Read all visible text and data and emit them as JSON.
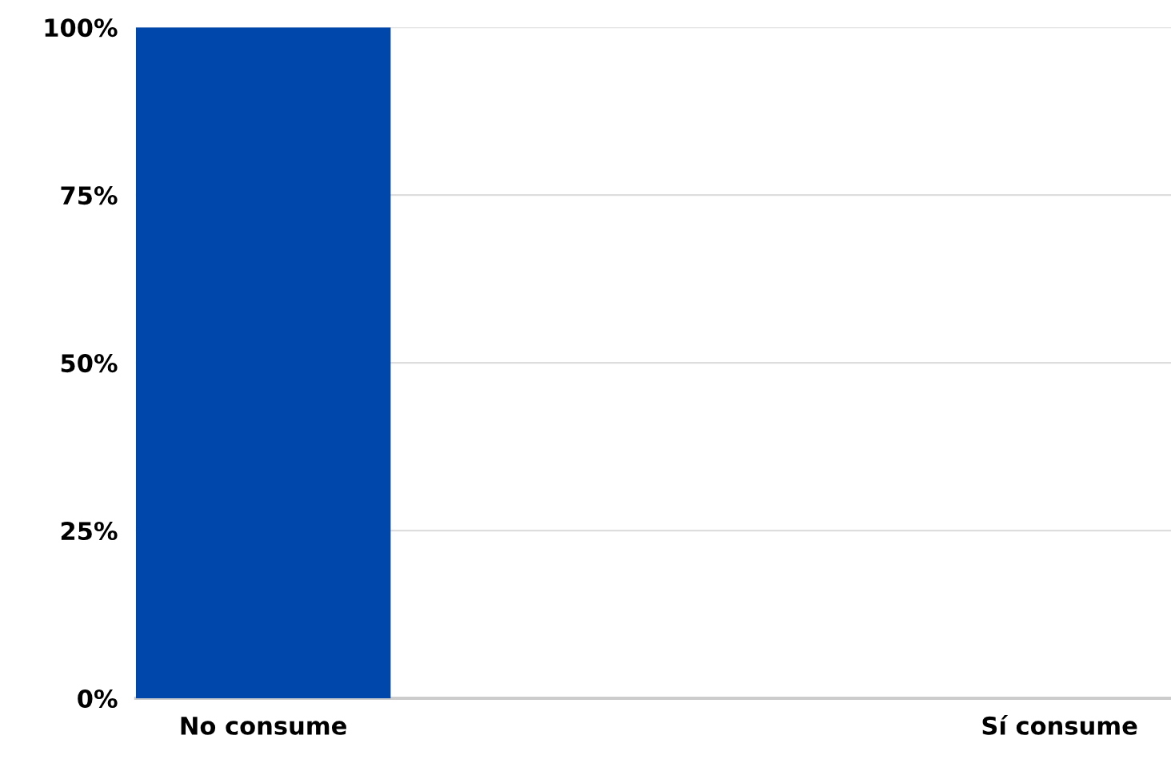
{
  "chart_data": {
    "type": "bar",
    "categories": [
      "No consume",
      "Sí consume"
    ],
    "values": [
      100,
      0
    ],
    "color": "#0047ab",
    "ylim": [
      0,
      100
    ],
    "yticks": [
      {
        "value": 0,
        "label": "0%"
      },
      {
        "value": 25,
        "label": "25%"
      },
      {
        "value": 50,
        "label": "50%"
      },
      {
        "value": 75,
        "label": "75%"
      },
      {
        "value": 100,
        "label": "100%"
      }
    ],
    "grid": "y"
  }
}
